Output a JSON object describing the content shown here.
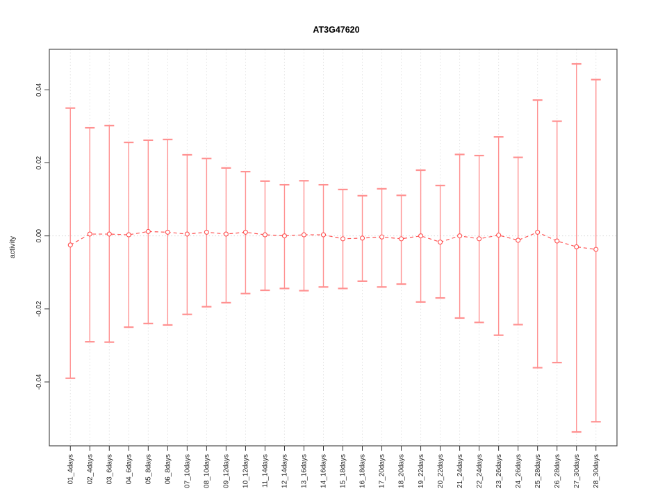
{
  "title": "AT3G47620",
  "chart_data": {
    "type": "line",
    "subtype": "error-bar-series",
    "title": "AT3G47620",
    "xlabel": "",
    "ylabel": "activity",
    "categories": [
      "01_4days",
      "02_4days",
      "03_6days",
      "04_6days",
      "05_8days",
      "06_8days",
      "07_10days",
      "08_10days",
      "09_12days",
      "10_12days",
      "11_14days",
      "12_14days",
      "13_16days",
      "14_16days",
      "15_18days",
      "16_18days",
      "17_20days",
      "18_20days",
      "19_22days",
      "20_22days",
      "21_24days",
      "22_24days",
      "23_26days",
      "24_26days",
      "25_28days",
      "26_28days",
      "27_30days",
      "28_30days"
    ],
    "series": [
      {
        "name": "activity",
        "values": [
          -0.0025,
          0.0005,
          0.0005,
          0.0003,
          0.0012,
          0.001,
          0.0005,
          0.001,
          0.0005,
          0.001,
          0.0003,
          0.0,
          0.0003,
          0.0003,
          -0.0008,
          -0.0006,
          -0.0003,
          -0.0008,
          0.0,
          -0.0017,
          0.0,
          -0.0008,
          0.0002,
          -0.0012,
          0.001,
          -0.0014,
          -0.003,
          -0.0037
        ],
        "upper": [
          0.035,
          0.0296,
          0.0302,
          0.0256,
          0.0262,
          0.0264,
          0.0222,
          0.0212,
          0.0186,
          0.0176,
          0.015,
          0.014,
          0.0151,
          0.014,
          0.0127,
          0.011,
          0.0129,
          0.0111,
          0.018,
          0.0138,
          0.0223,
          0.022,
          0.0271,
          0.0215,
          0.0372,
          0.0314,
          0.0471,
          0.0428
        ],
        "lower": [
          -0.039,
          -0.029,
          -0.0291,
          -0.025,
          -0.024,
          -0.0244,
          -0.0215,
          -0.0194,
          -0.0183,
          -0.0158,
          -0.0149,
          -0.0144,
          -0.015,
          -0.014,
          -0.0144,
          -0.0124,
          -0.014,
          -0.0132,
          -0.0181,
          -0.017,
          -0.0225,
          -0.0237,
          -0.0272,
          -0.0243,
          -0.0361,
          -0.0347,
          -0.0537,
          -0.0509
        ]
      }
    ],
    "ylim": [
      -0.0575,
      0.0511
    ],
    "yticks": [
      -0.04,
      -0.02,
      0.0,
      0.02,
      0.04
    ],
    "ytick_labels": [
      "-0.04",
      "-0.02",
      "0.00",
      "0.02",
      "0.04"
    ],
    "zero_line": 0,
    "grid": "vertical-dotted",
    "legend": "none",
    "colors": {
      "error_bar": "#ff9191",
      "series_line": "#ff5252",
      "marker": "#ff4d4d",
      "grid": "#e3e3e3",
      "zero_line": "#d6d6d6",
      "box": "#4d4d4d",
      "tick": "#333333",
      "text": "#262626"
    }
  }
}
